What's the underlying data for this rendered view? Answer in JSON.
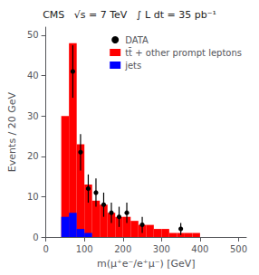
{
  "chart_data": {
    "type": "histogram",
    "title": "CMS   √s = 7 TeV   ∫ L dt = 35 pb⁻¹",
    "xlabel": "m(μ⁺e⁻/e⁺μ⁻) [GeV]",
    "ylabel": "Events / 20 GeV",
    "bins": [
      0,
      20,
      40,
      60,
      80,
      100,
      120,
      140,
      160,
      180,
      200,
      220,
      240,
      260,
      280,
      300,
      320,
      340,
      360,
      380,
      400,
      420,
      440,
      460,
      480,
      500
    ],
    "series": [
      {
        "name": "DATA",
        "type": "scatter",
        "color": "#000000",
        "x": [
          70,
          90,
          110,
          130,
          150,
          170,
          190,
          210,
          250,
          350
        ],
        "values": [
          41,
          21,
          12,
          11,
          8,
          6,
          5,
          6,
          3,
          2
        ],
        "error": [
          6.5,
          4.5,
          3.5,
          3.5,
          3,
          2.5,
          2.5,
          2.5,
          2,
          1.5
        ]
      },
      {
        "name": "tt̄ + other prompt leptons",
        "type": "bar",
        "color": "#FF0000",
        "values": [
          0,
          0,
          30,
          48,
          23,
          13,
          9,
          8,
          6,
          5,
          5,
          4,
          3,
          3,
          2,
          2,
          1,
          1,
          1,
          1,
          0,
          0,
          0,
          0,
          0
        ]
      },
      {
        "name": "jets",
        "type": "bar",
        "color": "#0000FF",
        "values": [
          0,
          0,
          5,
          6,
          2,
          1,
          0,
          0,
          0,
          0,
          0,
          0,
          0,
          0,
          0,
          0,
          0,
          0,
          0,
          0,
          0,
          0,
          0,
          0,
          0
        ]
      }
    ],
    "stacked": false,
    "xlim": [
      0,
      520
    ],
    "ylim": [
      0,
      52
    ],
    "xticks": [
      0,
      100,
      200,
      300,
      400,
      500
    ],
    "yticks": [
      0,
      10,
      20,
      30,
      40,
      50
    ],
    "grid": false,
    "legend": "upper right"
  }
}
